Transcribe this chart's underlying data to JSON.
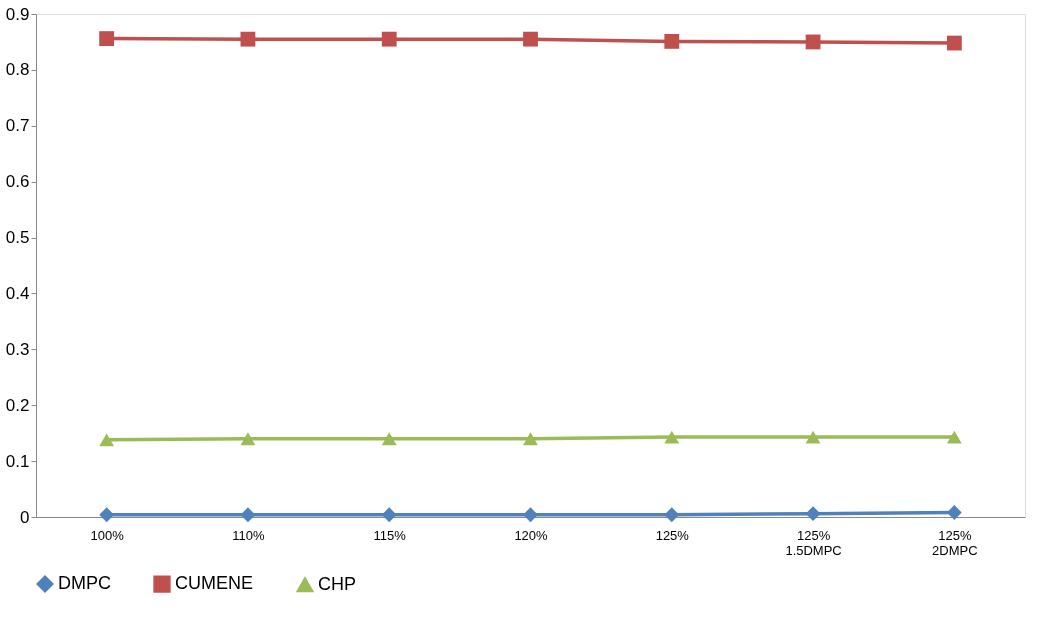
{
  "chart_data": {
    "type": "line",
    "categories": [
      "100%",
      "110%",
      "115%",
      "120%",
      "125%",
      "125%\n1.5DMPC",
      "125%\n2DMPC"
    ],
    "series": [
      {
        "name": "DMPC",
        "color": "#4f81bd",
        "marker": "diamond",
        "values": [
          0.004,
          0.004,
          0.004,
          0.004,
          0.004,
          0.006,
          0.008
        ]
      },
      {
        "name": "CUMENE",
        "color": "#c0504d",
        "marker": "square",
        "values": [
          0.856,
          0.855,
          0.855,
          0.855,
          0.851,
          0.85,
          0.848
        ]
      },
      {
        "name": "CHP",
        "color": "#9bbb59",
        "marker": "triangle",
        "values": [
          0.138,
          0.14,
          0.14,
          0.14,
          0.143,
          0.143,
          0.143
        ]
      }
    ],
    "ylim": [
      0,
      0.9
    ],
    "yticks": [
      0,
      0.1,
      0.2,
      0.3,
      0.4,
      0.5,
      0.6,
      0.7,
      0.8,
      0.9
    ],
    "grid": false,
    "legend": "bottom",
    "line_style": "solid"
  }
}
